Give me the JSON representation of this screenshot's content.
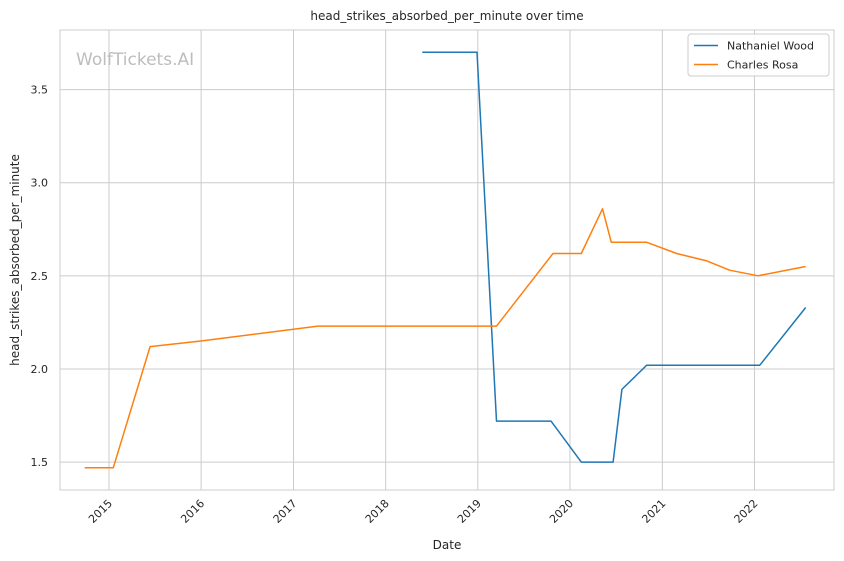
{
  "chart_data": {
    "type": "line",
    "title": "head_strikes_absorbed_per_minute over time",
    "xlabel": "Date",
    "ylabel": "head_strikes_absorbed_per_minute",
    "watermark": "WolfTickets.AI",
    "xlim": [
      "2014-06-21",
      "2022-11-12"
    ],
    "ylim": [
      1.35,
      3.82
    ],
    "x_ticks": [
      "2015",
      "2016",
      "2017",
      "2018",
      "2019",
      "2020",
      "2021",
      "2022"
    ],
    "y_ticks": [
      "1.5",
      "2.0",
      "2.5",
      "3.0",
      "3.5"
    ],
    "grid": true,
    "legend_position": "top-right",
    "series": [
      {
        "name": "Nathaniel Wood",
        "color": "#1f77b4",
        "points": [
          {
            "x": "2018-05-26",
            "y": 3.7
          },
          {
            "x": "2018-12-29",
            "y": 3.7
          },
          {
            "x": "2019-03-16",
            "y": 1.72
          },
          {
            "x": "2019-10-18",
            "y": 1.72
          },
          {
            "x": "2020-02-15",
            "y": 1.5
          },
          {
            "x": "2020-06-20",
            "y": 1.5
          },
          {
            "x": "2020-07-25",
            "y": 1.89
          },
          {
            "x": "2020-10-31",
            "y": 2.02
          },
          {
            "x": "2022-01-22",
            "y": 2.02
          },
          {
            "x": "2022-07-23",
            "y": 2.33
          }
        ]
      },
      {
        "name": "Charles Rosa",
        "color": "#ff7f0e",
        "points": [
          {
            "x": "2014-09-27",
            "y": 1.47
          },
          {
            "x": "2015-01-18",
            "y": 1.47
          },
          {
            "x": "2015-06-13",
            "y": 2.12
          },
          {
            "x": "2015-12-31",
            "y": 2.15
          },
          {
            "x": "2017-04-08",
            "y": 2.23
          },
          {
            "x": "2019-03-16",
            "y": 2.23
          },
          {
            "x": "2019-10-26",
            "y": 2.62
          },
          {
            "x": "2020-02-15",
            "y": 2.62
          },
          {
            "x": "2020-05-09",
            "y": 2.86
          },
          {
            "x": "2020-06-13",
            "y": 2.68
          },
          {
            "x": "2020-10-31",
            "y": 2.68
          },
          {
            "x": "2021-02-27",
            "y": 2.62
          },
          {
            "x": "2021-06-26",
            "y": 2.58
          },
          {
            "x": "2021-09-25",
            "y": 2.53
          },
          {
            "x": "2022-01-15",
            "y": 2.5
          },
          {
            "x": "2022-07-23",
            "y": 2.55
          }
        ]
      }
    ]
  }
}
